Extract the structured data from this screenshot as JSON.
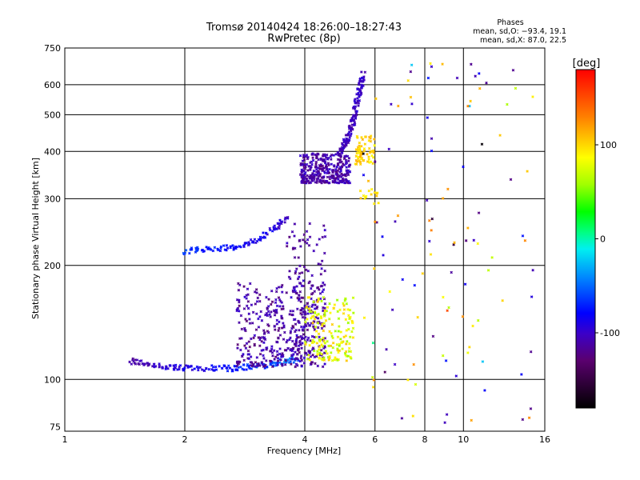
{
  "header": {
    "title": "Tromsø 20140424 18:26:00–18:27:43",
    "subtitle": "RwPretec (8p)"
  },
  "stats": {
    "title": "Phases",
    "line_o": "mean, sd,O: −93.4, 19.1",
    "line_x": "mean, sd,X:  87.0, 22.5"
  },
  "chart_data": {
    "type": "scatter",
    "xlabel": "Frequency [MHz]",
    "ylabel": "Stationary phase Virtual Height [km]",
    "x_scale": "log",
    "y_scale": "log",
    "xlim": [
      1,
      16
    ],
    "ylim": [
      73,
      750
    ],
    "x_ticks": [
      1,
      2,
      4,
      6,
      8,
      10,
      16
    ],
    "y_ticks": [
      75,
      100,
      200,
      300,
      400,
      500,
      600,
      750
    ],
    "x_gridlines": [
      2,
      4,
      6,
      8,
      10
    ],
    "y_gridlines": [
      100,
      200,
      300,
      400,
      500,
      600
    ],
    "colorbar": {
      "label": "[deg]",
      "range": [
        -180,
        180
      ],
      "ticks": [
        100,
        0,
        -100
      ],
      "colormap": "rainbow: black → purple → blue → cyan → green → yellow → orange → red"
    },
    "trace_groups": [
      {
        "kind": "curve",
        "x": [
          1.45,
          1.6,
          1.8,
          2.0,
          2.3,
          2.6,
          2.9,
          3.2,
          3.5,
          3.8
        ],
        "y": [
          112,
          110,
          108,
          107,
          107,
          107,
          108,
          109,
          111,
          113
        ],
        "phase_from": -110,
        "phase_to": -50,
        "n": 160
      },
      {
        "kind": "curve",
        "x": [
          2.0,
          2.2,
          2.5,
          2.8,
          3.1,
          3.4,
          3.6
        ],
        "y": [
          218,
          220,
          222,
          226,
          236,
          252,
          265
        ],
        "phase_from": -65,
        "phase_to": -100,
        "n": 100
      },
      {
        "kind": "cloud",
        "x": [
          2.7,
          4.5
        ],
        "y": [
          108,
          180
        ],
        "phase": [
          -130,
          -95
        ],
        "n": 380
      },
      {
        "kind": "cloud",
        "x": [
          3.6,
          4.5
        ],
        "y": [
          115,
          260
        ],
        "phase": [
          -125,
          -95
        ],
        "n": 140
      },
      {
        "kind": "cloud",
        "x": [
          4.0,
          5.3
        ],
        "y": [
          112,
          165
        ],
        "phase": [
          55,
          110
        ],
        "n": 170
      },
      {
        "kind": "cloud",
        "x": [
          3.9,
          5.2
        ],
        "y": [
          330,
          395
        ],
        "phase": [
          -125,
          -95
        ],
        "n": 330
      },
      {
        "kind": "curve",
        "x": [
          4.9,
          5.1,
          5.3,
          5.45,
          5.6
        ],
        "y": [
          400,
          430,
          480,
          560,
          640
        ],
        "phase_from": -105,
        "phase_to": -100,
        "n": 140
      },
      {
        "kind": "cloud",
        "x": [
          5.35,
          6.0
        ],
        "y": [
          370,
          440
        ],
        "phase": [
          85,
          115
        ],
        "n": 70
      },
      {
        "kind": "cloud",
        "x": [
          5.5,
          6.3
        ],
        "y": [
          290,
          320
        ],
        "phase": [
          85,
          110
        ],
        "n": 15
      },
      {
        "kind": "scatter",
        "x": [
          5.6,
          15
        ],
        "y": [
          76,
          700
        ],
        "phase": [
          -180,
          180
        ],
        "n": 110
      }
    ]
  }
}
